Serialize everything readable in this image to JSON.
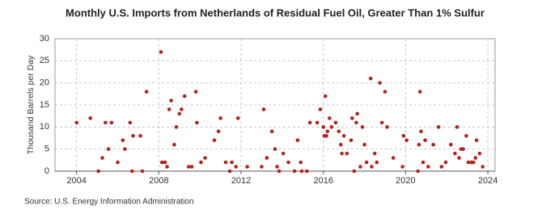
{
  "chart_data": {
    "type": "scatter",
    "title": "Monthly U.S. Imports from Netherlands of Residual Fuel Oil, Greater Than 1% Sulfur",
    "y_label": "Thousand Barrels per Day",
    "source": "Source: U.S. Energy Information Administration",
    "color": "#b5221c",
    "grid": true,
    "xlim": [
      2002.95,
      2024.35
    ],
    "ylim": [
      0,
      30
    ],
    "xticks": [
      2004,
      2008,
      2012,
      2016,
      2020,
      2024
    ],
    "yticks": [
      0,
      5,
      10,
      15,
      20,
      25,
      30
    ],
    "x": [
      2004.0,
      2004.67,
      2005.06,
      2005.25,
      2005.4,
      2005.55,
      2005.7,
      2006.0,
      2006.25,
      2006.35,
      2006.6,
      2006.7,
      2006.75,
      2007.1,
      2007.2,
      2007.4,
      2008.1,
      2008.15,
      2008.3,
      2008.4,
      2008.5,
      2008.6,
      2008.75,
      2008.85,
      2009.0,
      2009.1,
      2009.25,
      2009.45,
      2009.6,
      2009.8,
      2009.85,
      2010.05,
      2010.25,
      2010.7,
      2010.9,
      2011.0,
      2011.25,
      2011.45,
      2011.55,
      2011.75,
      2011.85,
      2012.3,
      2013.0,
      2013.1,
      2013.25,
      2013.5,
      2013.65,
      2013.75,
      2013.85,
      2014.05,
      2014.3,
      2014.6,
      2014.75,
      2014.9,
      2014.95,
      2015.2,
      2015.35,
      2015.7,
      2015.85,
      2016.0,
      2016.05,
      2016.1,
      2016.15,
      2016.2,
      2016.3,
      2016.4,
      2016.6,
      2016.75,
      2016.85,
      2016.9,
      2017.0,
      2017.15,
      2017.35,
      2017.4,
      2017.5,
      2017.6,
      2017.65,
      2017.8,
      2017.9,
      2018.0,
      2018.1,
      2018.3,
      2018.35,
      2018.5,
      2018.6,
      2018.75,
      2018.85,
      2019.0,
      2019.1,
      2019.4,
      2019.85,
      2019.9,
      2020.05,
      2020.6,
      2020.65,
      2020.7,
      2020.75,
      2020.85,
      2020.95,
      2021.1,
      2021.35,
      2021.6,
      2021.75,
      2021.95,
      2022.2,
      2022.4,
      2022.5,
      2022.6,
      2022.7,
      2022.8,
      2022.95,
      2023.05,
      2023.2,
      2023.3,
      2023.4,
      2023.45,
      2023.6,
      2023.75
    ],
    "values": [
      11,
      12,
      0,
      3,
      11,
      5,
      11,
      2,
      7,
      5,
      11,
      0,
      8,
      8,
      0,
      18,
      27,
      2,
      2,
      1,
      14,
      16,
      6,
      10,
      13,
      14,
      17,
      1,
      1,
      18,
      11,
      2,
      3,
      7,
      9,
      12,
      2,
      0,
      2,
      1,
      12,
      1,
      1,
      14,
      3,
      9,
      5,
      1,
      0,
      4,
      2,
      0,
      7,
      2,
      0,
      0,
      11,
      11,
      14,
      10,
      8,
      17,
      8,
      9,
      12,
      10,
      11,
      9,
      6,
      4,
      8,
      4,
      7,
      12,
      0,
      11,
      13,
      1,
      10,
      6,
      2,
      21,
      1,
      4,
      2,
      20,
      11,
      18,
      10,
      3,
      1,
      8,
      7,
      0,
      6,
      18,
      9,
      2,
      7,
      1,
      6,
      10,
      1,
      2,
      6,
      4,
      10,
      3,
      5,
      5,
      8,
      2,
      2,
      2,
      3,
      7,
      4,
      1
    ]
  }
}
